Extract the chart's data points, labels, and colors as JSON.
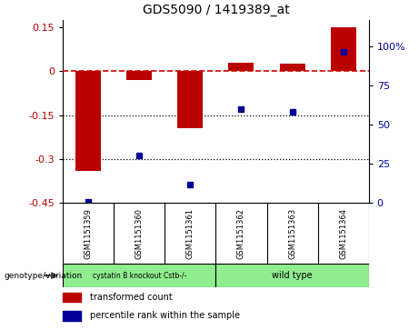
{
  "title": "GDS5090 / 1419389_at",
  "samples": [
    "GSM1151359",
    "GSM1151360",
    "GSM1151361",
    "GSM1151362",
    "GSM1151363",
    "GSM1151364"
  ],
  "transformed_count": [
    -0.34,
    -0.03,
    -0.195,
    0.03,
    0.025,
    0.15
  ],
  "percentile_rank": [
    1,
    30,
    12,
    60,
    58,
    96
  ],
  "ylim_left": [
    -0.45,
    0.175
  ],
  "ylim_right": [
    0,
    116.67
  ],
  "yticks_left": [
    0.15,
    0,
    -0.15,
    -0.3,
    -0.45
  ],
  "yticks_left_labels": [
    "0.15",
    "0",
    "-0.15",
    "-0.3",
    "-0.45"
  ],
  "yticks_right": [
    100,
    75,
    50,
    25,
    0
  ],
  "yticks_right_labels": [
    "100%",
    "75",
    "50",
    "25",
    "0"
  ],
  "hlines_dotted": [
    -0.15,
    -0.3
  ],
  "hline_dashed": 0,
  "bar_color": "#bb0000",
  "dot_color": "#000099",
  "bar_width": 0.5,
  "group1_label": "cystatin B knockout Cstb-/-",
  "group2_label": "wild type",
  "group1_color": "#90ee90",
  "group2_color": "#90ee90",
  "genotype_label": "genotype/variation",
  "legend_red": "transformed count",
  "legend_blue": "percentile rank within the sample",
  "background_color": "#ffffff",
  "plot_bg": "#ffffff",
  "dashed_color": "#cc0000",
  "label_box_color": "#cccccc"
}
